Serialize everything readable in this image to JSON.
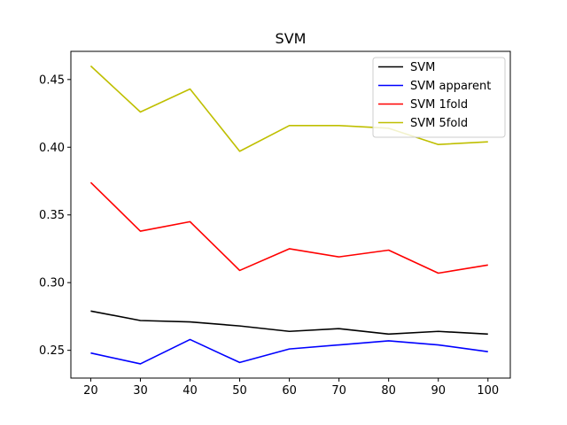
{
  "chart_data": {
    "type": "line",
    "title": "SVM",
    "xlabel": "",
    "ylabel": "",
    "x": [
      20,
      30,
      40,
      50,
      60,
      70,
      80,
      90,
      100
    ],
    "xlim": [
      16,
      104.5
    ],
    "ylim": [
      0.2295,
      0.4708
    ],
    "xticks": [
      20,
      30,
      40,
      50,
      60,
      70,
      80,
      90,
      100
    ],
    "xtick_labels": [
      "20",
      "30",
      "40",
      "50",
      "60",
      "70",
      "80",
      "90",
      "100"
    ],
    "yticks": [
      0.25,
      0.3,
      0.35,
      0.4,
      0.45
    ],
    "ytick_labels": [
      "0.25",
      "0.30",
      "0.35",
      "0.40",
      "0.45"
    ],
    "grid": false,
    "legend_position": "top-right",
    "series": [
      {
        "name": "SVM",
        "color": "#000000",
        "values": [
          0.279,
          0.272,
          0.271,
          0.268,
          0.264,
          0.266,
          0.262,
          0.264,
          0.262
        ]
      },
      {
        "name": "SVM apparent",
        "color": "#0000ff",
        "values": [
          0.248,
          0.24,
          0.258,
          0.241,
          0.251,
          0.254,
          0.257,
          0.254,
          0.249
        ]
      },
      {
        "name": "SVM 1fold",
        "color": "#ff0000",
        "values": [
          0.374,
          0.338,
          0.345,
          0.309,
          0.325,
          0.319,
          0.324,
          0.307,
          0.313
        ]
      },
      {
        "name": "SVM 5fold",
        "color": "#bfbf00",
        "values": [
          0.46,
          0.426,
          0.443,
          0.397,
          0.416,
          0.416,
          0.414,
          0.402,
          0.404
        ]
      }
    ]
  }
}
